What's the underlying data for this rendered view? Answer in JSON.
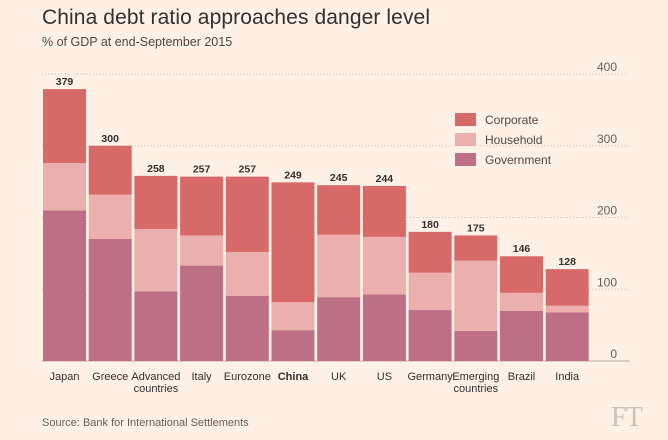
{
  "title": "China debt ratio approaches danger level",
  "subtitle": "% of GDP at end-September 2015",
  "source": "Source: Bank for International Settlements",
  "logo": "FT",
  "colors": {
    "corporate": "#d76969",
    "household": "#ebb0ae",
    "government": "#bd6f86",
    "grid": "#cfc3b8",
    "background": "#fff1e5"
  },
  "chart_data": {
    "type": "bar",
    "stacked": true,
    "title": "China debt ratio approaches danger level",
    "subtitle": "% of GDP at end-September 2015",
    "ylim": [
      0,
      400
    ],
    "yticks": [
      0,
      100,
      200,
      300,
      400
    ],
    "categories": [
      [
        "Japan"
      ],
      [
        "Greece"
      ],
      [
        "Advanced",
        "countries"
      ],
      [
        "Italy"
      ],
      [
        "Eurozone"
      ],
      [
        "China"
      ],
      [
        "UK"
      ],
      [
        "US"
      ],
      [
        "Germany"
      ],
      [
        "Emerging",
        "countries"
      ],
      [
        "Brazil"
      ],
      [
        "India"
      ]
    ],
    "highlight": "China",
    "totals": [
      379,
      300,
      258,
      257,
      257,
      249,
      245,
      244,
      180,
      175,
      146,
      128
    ],
    "series": [
      {
        "name": "Government",
        "values": [
          210,
          170,
          97,
          133,
          91,
          43,
          89,
          93,
          71,
          42,
          70,
          68
        ]
      },
      {
        "name": "Household",
        "values": [
          66,
          62,
          87,
          42,
          61,
          39,
          87,
          80,
          52,
          98,
          25,
          9
        ]
      },
      {
        "name": "Corporate",
        "values": [
          103,
          68,
          74,
          82,
          105,
          167,
          69,
          71,
          57,
          35,
          51,
          51
        ]
      }
    ],
    "legend": [
      "Corporate",
      "Household",
      "Government"
    ],
    "legend_position": "top-right"
  }
}
